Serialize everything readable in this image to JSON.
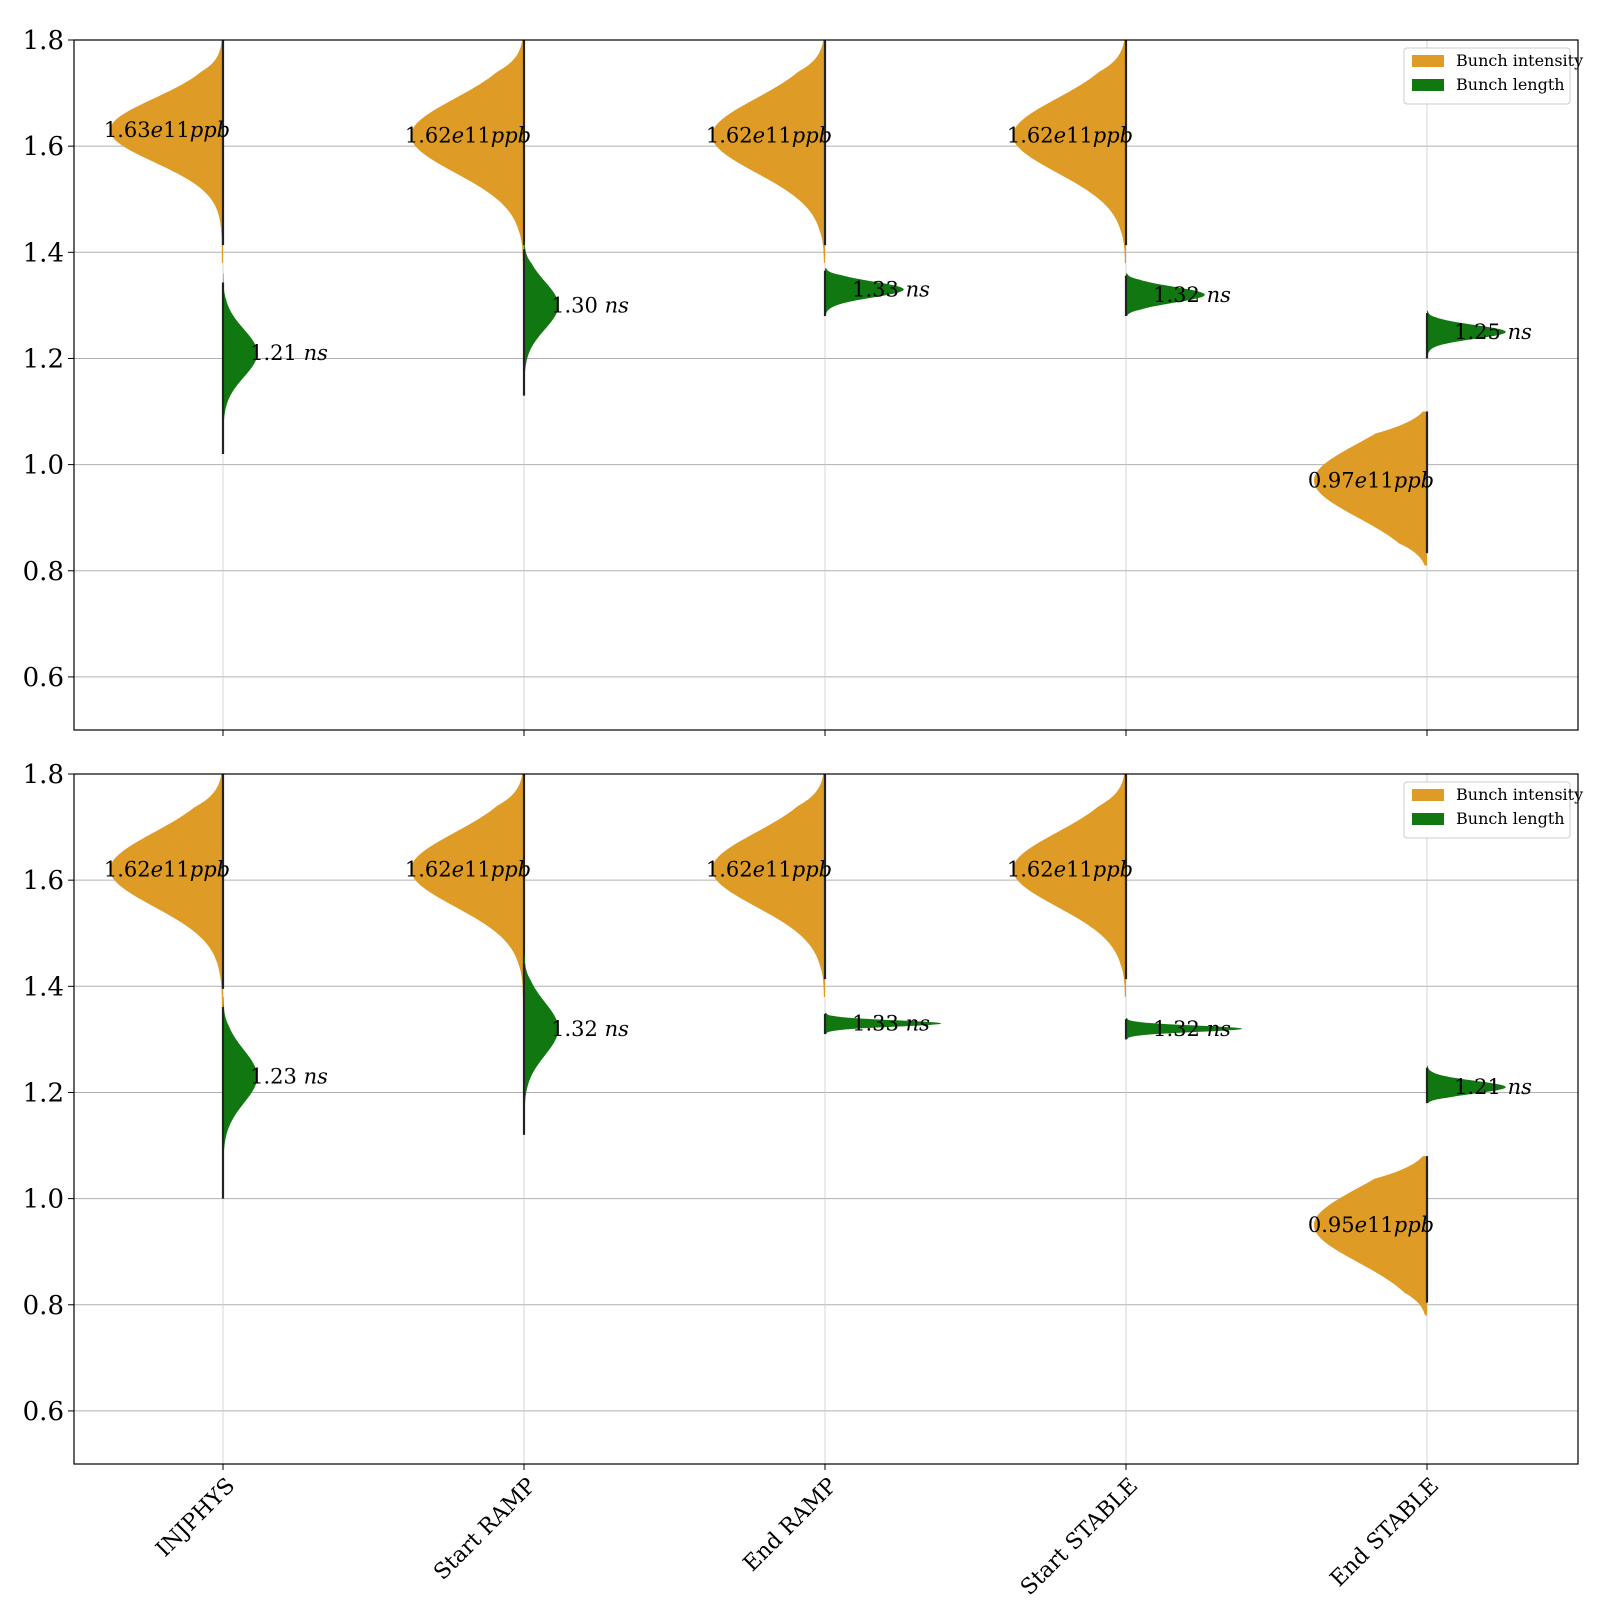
{
  "chart_data": {
    "type": "violin",
    "categories": [
      "INJPHYS",
      "Start RAMP",
      "End RAMP",
      "Start STABLE",
      "End STABLE"
    ],
    "ylim": [
      0.5,
      1.8
    ],
    "yticks": [
      "0.6",
      "0.8",
      "1.0",
      "1.2",
      "1.4",
      "1.6",
      "1.8"
    ],
    "grid": "horizontal",
    "legend_placement": "top-right",
    "colors": {
      "intensity": "#de9b25",
      "length": "#117811"
    },
    "series_names": [
      "Bunch intensity",
      "Bunch length"
    ],
    "panels": [
      {
        "intensity": {
          "medians": [
            1.63,
            1.62,
            1.62,
            1.62,
            0.97
          ],
          "labels": [
            "1.63",
            "1.62",
            "1.62",
            "1.62",
            "0.97"
          ],
          "unit": "e11ppb",
          "ranges": [
            [
              1.38,
              1.8
            ],
            [
              1.38,
              1.8
            ],
            [
              1.38,
              1.8
            ],
            [
              1.38,
              1.8
            ],
            [
              0.81,
              1.1
            ]
          ],
          "spreads": [
            0.06,
            0.07,
            0.07,
            0.07,
            0.07
          ]
        },
        "length": {
          "medians": [
            1.21,
            1.3,
            1.33,
            1.32,
            1.25
          ],
          "labels": [
            "1.21",
            "1.30",
            "1.33",
            "1.32",
            "1.25"
          ],
          "unit": "ns",
          "ranges": [
            [
              1.02,
              1.36
            ],
            [
              1.13,
              1.42
            ],
            [
              1.28,
              1.37
            ],
            [
              1.28,
              1.36
            ],
            [
              1.2,
              1.29
            ]
          ],
          "spreads": [
            0.045,
            0.045,
            0.015,
            0.015,
            0.013
          ]
        }
      },
      {
        "intensity": {
          "medians": [
            1.62,
            1.62,
            1.62,
            1.62,
            0.95
          ],
          "labels": [
            "1.62",
            "1.62",
            "1.62",
            "1.62",
            "0.95"
          ],
          "unit": "e11ppb",
          "ranges": [
            [
              1.36,
              1.8
            ],
            [
              1.38,
              1.8
            ],
            [
              1.38,
              1.8
            ],
            [
              1.38,
              1.8
            ],
            [
              0.78,
              1.08
            ]
          ],
          "spreads": [
            0.07,
            0.07,
            0.07,
            0.07,
            0.07
          ]
        },
        "length": {
          "medians": [
            1.23,
            1.32,
            1.33,
            1.32,
            1.21
          ],
          "labels": [
            "1.23",
            "1.32",
            "1.33",
            "1.32",
            "1.21"
          ],
          "unit": "ns",
          "ranges": [
            [
              1.0,
              1.38
            ],
            [
              1.12,
              1.46
            ],
            [
              1.31,
              1.35
            ],
            [
              1.3,
              1.34
            ],
            [
              1.18,
              1.25
            ]
          ],
          "spreads": [
            0.05,
            0.05,
            0.006,
            0.006,
            0.012
          ]
        }
      }
    ]
  }
}
